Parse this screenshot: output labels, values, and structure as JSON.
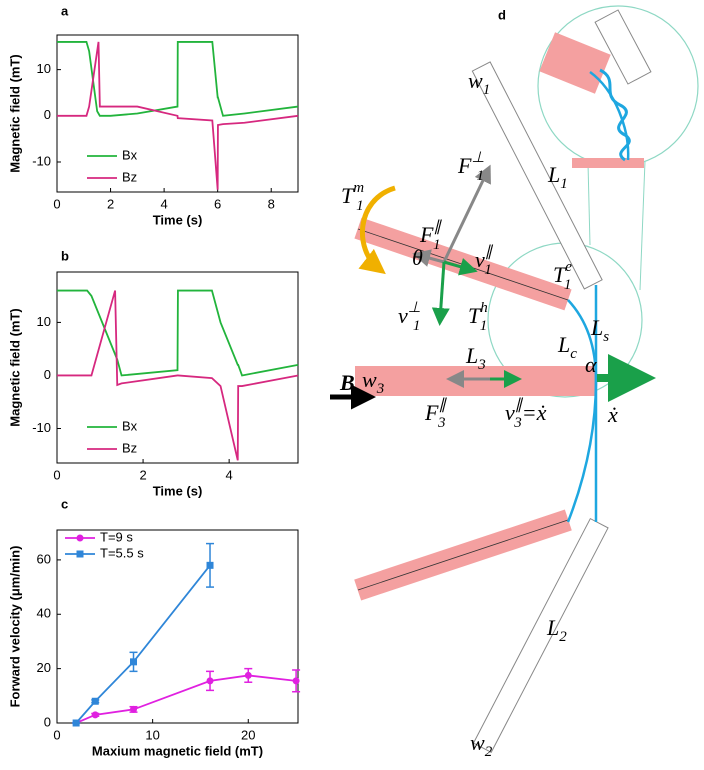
{
  "chart_data": [
    {
      "type": "line",
      "label": "a",
      "xlabel": "Time (s)",
      "ylabel": "Magnetic field (mT)",
      "x": [
        0,
        1.1,
        1.2,
        1.5,
        1.55,
        1.6,
        2,
        3,
        4.5,
        4.51,
        5.8,
        6.0,
        6.01,
        6.2,
        7,
        9
      ],
      "series": [
        {
          "name": "Bx",
          "color": "#22b43c",
          "values": [
            16,
            16,
            14,
            1,
            0.5,
            0,
            0,
            0.5,
            2,
            16,
            16,
            4,
            4,
            0,
            0.5,
            2
          ]
        },
        {
          "name": "Bz",
          "color": "#d6287f",
          "values": [
            0,
            0,
            2,
            14,
            16,
            2,
            2,
            2,
            0,
            -0.5,
            -1,
            -16,
            -2,
            -1.8,
            -1.5,
            0
          ]
        }
      ],
      "xlim": [
        0,
        9
      ],
      "xticks": [
        0,
        2,
        4,
        6,
        8
      ],
      "ylim": [
        -16.5,
        17.5
      ],
      "yticks": [
        -10,
        0,
        10
      ],
      "legend": "lower left"
    },
    {
      "type": "line",
      "label": "b",
      "xlabel": "Time (s)",
      "ylabel": "Magnetic field (mT)",
      "x": [
        0,
        0.7,
        0.8,
        1.35,
        1.4,
        1.5,
        2.8,
        2.81,
        3.6,
        3.8,
        4.2,
        4.21,
        4.3,
        5.6
      ],
      "series": [
        {
          "name": "Bx",
          "color": "#22b43c",
          "values": [
            16,
            16,
            15,
            4,
            3,
            0,
            1,
            16,
            16,
            10,
            2,
            2,
            0,
            2
          ]
        },
        {
          "name": "Bz",
          "color": "#d6287f",
          "values": [
            0,
            0,
            0,
            16,
            -1.8,
            -1.5,
            0,
            0,
            -0.5,
            -2,
            -16,
            -2,
            -2,
            0
          ]
        }
      ],
      "xlim": [
        0,
        5.6
      ],
      "xticks": [
        0,
        2,
        4
      ],
      "ylim": [
        -16.5,
        19.5
      ],
      "yticks": [
        -10,
        0,
        10
      ],
      "legend": "lower left"
    },
    {
      "type": "errorline",
      "label": "c",
      "xlabel": "Maxium magnetic field (mT)",
      "ylabel": "Forward velocity (μm/min)",
      "series": [
        {
          "name": "T=9 s",
          "color": "#e020e0",
          "marker": "circle",
          "x": [
            2,
            4,
            8,
            16,
            20,
            25
          ],
          "values": [
            0,
            3,
            5,
            15.5,
            17.5,
            15.5
          ],
          "errors": [
            0,
            0.5,
            1,
            3.5,
            2.5,
            4
          ]
        },
        {
          "name": "T=5.5 s",
          "color": "#2f86d8",
          "marker": "square",
          "x": [
            2,
            4,
            8,
            16
          ],
          "values": [
            0,
            8,
            22.5,
            58
          ],
          "errors": [
            0,
            0.5,
            3.5,
            8
          ]
        }
      ],
      "xlim": [
        0,
        25.2
      ],
      "xticks": [
        0,
        10,
        20
      ],
      "ylim": [
        0,
        71
      ],
      "yticks": [
        0,
        20,
        40,
        60
      ],
      "legend": "upper left"
    }
  ],
  "diagram": {
    "label": "d",
    "labels": [
      {
        "base": "w",
        "sub": "1"
      },
      {
        "base": "L",
        "sub": "1"
      },
      {
        "base": "F",
        "sub": "1",
        "sup": "⊥"
      },
      {
        "base": "T",
        "sub": "1",
        "sup": "m"
      },
      {
        "base": "F",
        "sub": "1",
        "sup": "∥"
      },
      {
        "base": "θ"
      },
      {
        "base": "v",
        "sub": "1",
        "sup": "∥"
      },
      {
        "base": "T",
        "sub": "1",
        "sup": "e"
      },
      {
        "base": "v",
        "sub": "1",
        "sup": "⊥"
      },
      {
        "base": "T",
        "sub": "1",
        "sup": "h"
      },
      {
        "base": "L",
        "sub": "c"
      },
      {
        "base": "L",
        "sub": "s"
      },
      {
        "base": "α"
      },
      {
        "base": "w",
        "sub": "3"
      },
      {
        "base": "L",
        "sub": "3"
      },
      {
        "base": "B"
      },
      {
        "base": "F",
        "sub": "3",
        "sup": "∥"
      },
      {
        "base": "v",
        "sub": "3",
        "sup": "∥",
        "tail": "=ẋ"
      },
      {
        "base": "ẋ"
      },
      {
        "base": "L",
        "sub": "2"
      },
      {
        "base": "w",
        "sub": "2"
      }
    ]
  }
}
